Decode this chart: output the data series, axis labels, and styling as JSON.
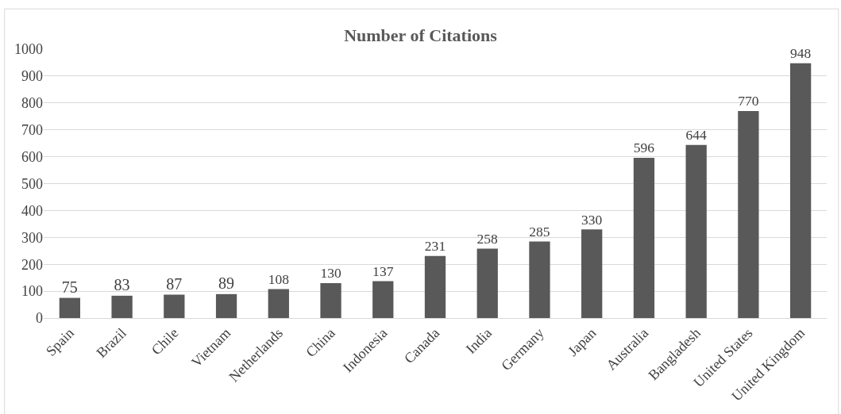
{
  "chart_data": {
    "type": "bar",
    "title": "Number of Citations",
    "categories": [
      "Spain",
      "Brazil",
      "Chile",
      "Vietnam",
      "Netherlands",
      "China",
      "Indonesia",
      "Canada",
      "India",
      "Germany",
      "Japan",
      "Australia",
      "Bangladesh",
      "United States",
      "United Kingdom"
    ],
    "values": [
      75,
      83,
      87,
      89,
      108,
      130,
      137,
      231,
      258,
      285,
      330,
      596,
      644,
      770,
      948
    ],
    "color": "#595959",
    "ylim": [
      0,
      1000
    ],
    "yticks": [
      0,
      100,
      200,
      300,
      400,
      500,
      600,
      700,
      800,
      900,
      1000
    ],
    "grid": "y",
    "data_labels": true,
    "legend": false
  }
}
